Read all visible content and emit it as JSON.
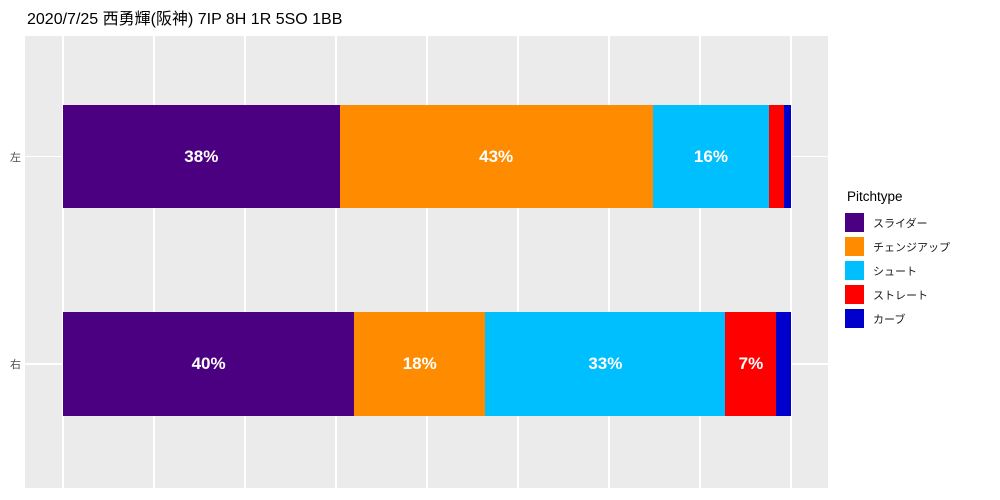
{
  "title": "2020/7/25 西勇輝(阪神) 7IP 8H 1R 5SO 1BB",
  "colors": {
    "panel_background": "#EBEBEB",
    "gridline": "#FFFFFF",
    "bar_label_text": "#FFFFFF",
    "axis_text": "#4D4D4D"
  },
  "chart_data": {
    "type": "bar",
    "orientation": "horizontal",
    "stacked": true,
    "unit": "percent",
    "title": "2020/7/25 西勇輝(阪神) 7IP 8H 1R 5SO 1BB",
    "legend_title": "Pitchtype",
    "legend_position": "right",
    "grid": true,
    "x_range": [
      0,
      100
    ],
    "gridline_percents": [
      0,
      12.5,
      25,
      37.5,
      50,
      62.5,
      75,
      87.5,
      100
    ],
    "categories": [
      "左",
      "右"
    ],
    "series": [
      {
        "name": "スライダー",
        "color": "#4B0082",
        "values": [
          38,
          40
        ]
      },
      {
        "name": "チェンジアップ",
        "color": "#FF8C00",
        "values": [
          43,
          18
        ]
      },
      {
        "name": "シュート",
        "color": "#00BFFF",
        "values": [
          16,
          33
        ]
      },
      {
        "name": "ストレート",
        "color": "#FF0000",
        "values": [
          2,
          7
        ]
      },
      {
        "name": "カーブ",
        "color": "#0000CD",
        "values": [
          1,
          2
        ]
      }
    ],
    "bar_labels": [
      [
        "38%",
        "43%",
        "16%",
        "",
        ""
      ],
      [
        "40%",
        "18%",
        "33%",
        "7%",
        ""
      ]
    ]
  }
}
